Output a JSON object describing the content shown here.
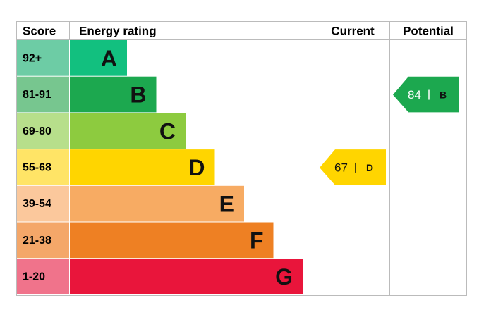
{
  "header": {
    "score": "Score",
    "rating": "Energy rating",
    "current": "Current",
    "potential": "Potential"
  },
  "bands": [
    {
      "score": "92+",
      "letter": "A",
      "color": "#12c07f",
      "light": "#6dcca5"
    },
    {
      "score": "81-91",
      "letter": "B",
      "color": "#1ca84f",
      "light": "#77c68f"
    },
    {
      "score": "69-80",
      "letter": "C",
      "color": "#8dcb3f",
      "light": "#b7df8b"
    },
    {
      "score": "55-68",
      "letter": "D",
      "color": "#ffd500",
      "light": "#ffe466"
    },
    {
      "score": "39-54",
      "letter": "E",
      "color": "#f7ab63",
      "light": "#fbc89c"
    },
    {
      "score": "21-38",
      "letter": "F",
      "color": "#ee8023",
      "light": "#f4a769"
    },
    {
      "score": "1-20",
      "letter": "G",
      "color": "#e9153b",
      "light": "#f0738b"
    }
  ],
  "current": {
    "value": 67,
    "letter": "D"
  },
  "potential": {
    "value": 84,
    "letter": "B"
  }
}
